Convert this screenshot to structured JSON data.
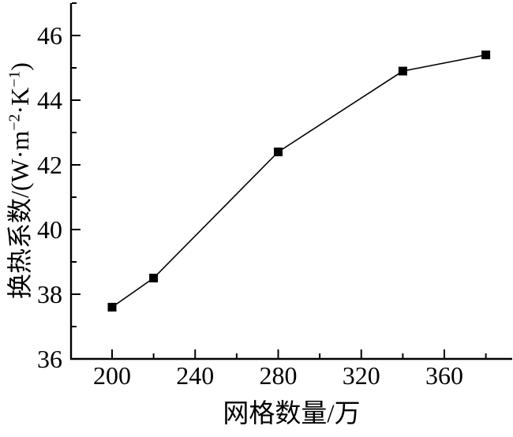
{
  "figure": {
    "background": "#ffffff",
    "text_color": "#000000"
  },
  "chart_data": {
    "type": "line",
    "x": [
      200,
      220,
      280,
      340,
      380
    ],
    "y": [
      37.6,
      38.5,
      42.4,
      44.9,
      45.4
    ],
    "xlabel": "网格数量/万",
    "ylabel": "换热系数/(W·m⁻²·K⁻¹)",
    "ylabel_parts": {
      "prefix": "换热系数/(W·m",
      "sup1": "−2",
      "infix": "·K",
      "sup2": "−1",
      "suffix": ")"
    },
    "xlim": [
      180,
      392
    ],
    "ylim": [
      36,
      47
    ],
    "x_ticks_major": [
      200,
      240,
      280,
      320,
      360
    ],
    "x_ticks_minor": [
      220,
      260,
      300,
      340,
      380
    ],
    "y_ticks_major": [
      36,
      38,
      40,
      42,
      44,
      46
    ],
    "y_ticks_minor": [
      37,
      39,
      41,
      43,
      45,
      47
    ],
    "marker": "square",
    "line_color": "#000000",
    "marker_color": "#000000",
    "axis_color": "#000000",
    "grid": false,
    "legend": "none"
  }
}
